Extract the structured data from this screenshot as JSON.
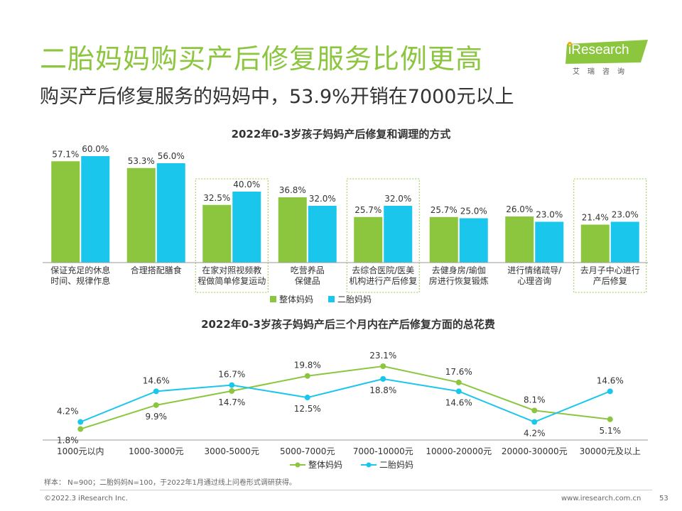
{
  "header": {
    "title": "二胎妈妈购买产后修复服务比例更高",
    "subtitle": "购买产后修复服务的妈妈中，53.9%开销在7000元以上"
  },
  "logo": {
    "brand": "iResearch",
    "sub": "艾瑞咨询"
  },
  "colors": {
    "green": "#8cc63f",
    "blue": "#1bc6ec",
    "title_green": "#8cc63f",
    "highlight_border": "#9bc94b"
  },
  "chart_data": [
    {
      "type": "bar",
      "title": "2022年0-3岁孩子妈妈产后修复和调理的方式",
      "categories": [
        "保证充足的休息\n时间、规律作息",
        "合理搭配膳食",
        "在家对照视频教\n程做简单修复运动",
        "吃营养品\n保健品",
        "去综合医院/医美\n机构进行产后修复",
        "去健身房/瑜伽\n房进行恢复锻炼",
        "进行情绪疏导/\n心理咨询",
        "去月子中心进行\n产后修复"
      ],
      "highlighted": [
        2,
        4,
        7
      ],
      "series": [
        {
          "name": "整体妈妈",
          "values": [
            57.1,
            53.3,
            32.5,
            36.8,
            25.7,
            25.7,
            26.0,
            21.4
          ],
          "labels": [
            "57.1%",
            "53.3%",
            "32.5%",
            "36.8%",
            "25.7%",
            "25.7%",
            "26.0%",
            "21.4%"
          ]
        },
        {
          "name": "二胎妈妈",
          "values": [
            60.0,
            56.0,
            40.0,
            32.0,
            32.0,
            25.0,
            23.0,
            23.0
          ],
          "labels": [
            "60.0%",
            "56.0%",
            "40.0%",
            "32.0%",
            "32.0%",
            "25.0%",
            "23.0%",
            "23.0%"
          ]
        }
      ],
      "legend": "bottom"
    },
    {
      "type": "line",
      "title": "2022年0-3岁孩子妈妈产后三个月内在产后修复方面的总花费",
      "categories": [
        "1000元以内",
        "1000-3000元",
        "3000-5000元",
        "5000-7000元",
        "7000-10000元",
        "10000-20000元",
        "20000-30000元",
        "30000元及以上"
      ],
      "series": [
        {
          "name": "整体妈妈",
          "values": [
            1.8,
            9.9,
            14.7,
            19.8,
            23.1,
            17.6,
            8.1,
            5.1
          ],
          "labels": [
            "1.8%",
            "9.9%",
            "14.7%",
            "19.8%",
            "23.1%",
            "17.6%",
            "8.1%",
            "5.1%"
          ]
        },
        {
          "name": "二胎妈妈",
          "values": [
            4.2,
            14.6,
            16.7,
            12.5,
            18.8,
            14.6,
            4.2,
            14.6
          ],
          "labels": [
            "4.2%",
            "14.6%",
            "16.7%",
            "12.5%",
            "18.8%",
            "14.6%",
            "4.2%",
            "14.6%"
          ]
        }
      ],
      "legend": "bottom"
    }
  ],
  "footer": {
    "note": "样本： N=900；二胎妈妈N=100，于2022年1月通过线上问卷形式调研获得。",
    "copyright": "©2022.3 iResearch Inc.",
    "website": "www.iresearch.com.cn",
    "page": "53"
  }
}
